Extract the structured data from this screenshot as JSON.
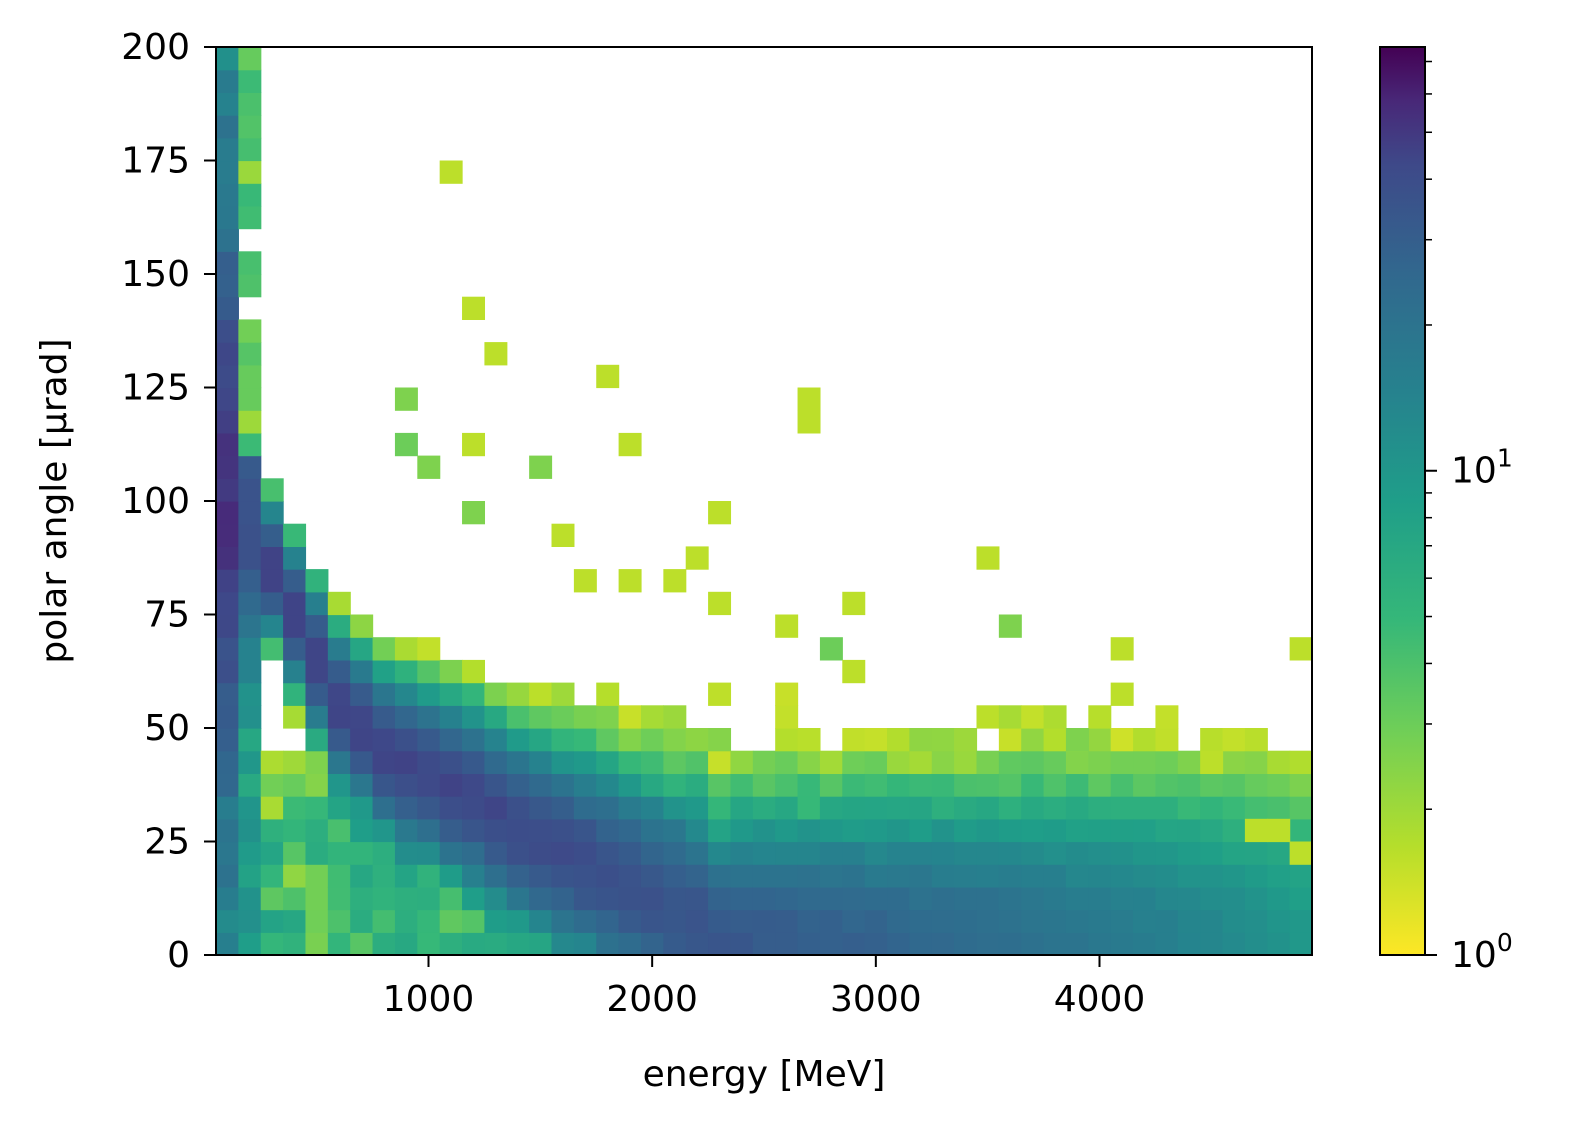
{
  "chart_data": {
    "type": "heatmap",
    "xlabel": "energy [MeV]",
    "ylabel": "polar angle [μrad]",
    "xlim": [
      50,
      4950
    ],
    "ylim": [
      0,
      200
    ],
    "x_bin_width": 100,
    "y_bin_width": 5,
    "x_ticks": [
      1000,
      2000,
      3000,
      4000
    ],
    "x_tick_labels": [
      "1000",
      "2000",
      "3000",
      "4000"
    ],
    "y_ticks": [
      0,
      25,
      50,
      75,
      100,
      125,
      150,
      175,
      200
    ],
    "y_tick_labels": [
      "0",
      "25",
      "50",
      "75",
      "100",
      "125",
      "150",
      "175",
      "200"
    ],
    "colorscale": "viridis_r",
    "log_color_scale": true,
    "clim": [
      1,
      75
    ],
    "colorbar": {
      "ticks": [
        1,
        10
      ],
      "tick_labels": [
        {
          "base": "10",
          "exp": "0"
        },
        {
          "base": "10",
          "exp": "1"
        }
      ]
    },
    "grid": false,
    "ridge_peaks": [
      {
        "x": 100,
        "y": 22
      },
      {
        "x": 150,
        "y": 105
      },
      {
        "x": 250,
        "y": 90
      },
      {
        "x": 400,
        "y": 75
      },
      {
        "x": 500,
        "y": 65
      },
      {
        "x": 600,
        "y": 55
      },
      {
        "x": 800,
        "y": 45
      },
      {
        "x": 1000,
        "y": 40
      },
      {
        "x": 1200,
        "y": 35
      },
      {
        "x": 1400,
        "y": 28
      },
      {
        "x": 1600,
        "y": 23
      },
      {
        "x": 1800,
        "y": 18
      },
      {
        "x": 2000,
        "y": 13
      },
      {
        "x": 2200,
        "y": 8
      },
      {
        "x": 2300,
        "y": 3
      }
    ],
    "sparse_cells": [
      {
        "x": 1100,
        "y": 172.5,
        "v": 1.6
      },
      {
        "x": 1200,
        "y": 142.5,
        "v": 1.6
      },
      {
        "x": 1300,
        "y": 132.5,
        "v": 1.6
      },
      {
        "x": 1800,
        "y": 127.5,
        "v": 1.6
      },
      {
        "x": 2700,
        "y": 122.5,
        "v": 1.6
      },
      {
        "x": 2700,
        "y": 117.5,
        "v": 1.6
      },
      {
        "x": 900,
        "y": 122.5,
        "v": 2.6
      },
      {
        "x": 900,
        "y": 112.5,
        "v": 3.0
      },
      {
        "x": 1200,
        "y": 112.5,
        "v": 1.6
      },
      {
        "x": 1900,
        "y": 112.5,
        "v": 1.6
      },
      {
        "x": 1000,
        "y": 107.5,
        "v": 2.6
      },
      {
        "x": 1500,
        "y": 107.5,
        "v": 2.6
      },
      {
        "x": 1200,
        "y": 97.5,
        "v": 2.6
      },
      {
        "x": 1600,
        "y": 92.5,
        "v": 1.6
      },
      {
        "x": 2300,
        "y": 97.5,
        "v": 1.6
      },
      {
        "x": 2200,
        "y": 87.5,
        "v": 1.6
      },
      {
        "x": 3500,
        "y": 87.5,
        "v": 1.6
      },
      {
        "x": 1700,
        "y": 82.5,
        "v": 1.6
      },
      {
        "x": 1900,
        "y": 82.5,
        "v": 1.6
      },
      {
        "x": 2100,
        "y": 82.5,
        "v": 1.6
      },
      {
        "x": 2300,
        "y": 77.5,
        "v": 1.6
      },
      {
        "x": 2900,
        "y": 77.5,
        "v": 1.6
      },
      {
        "x": 2600,
        "y": 72.5,
        "v": 1.6
      },
      {
        "x": 3600,
        "y": 72.5,
        "v": 2.6
      },
      {
        "x": 2800,
        "y": 67.5,
        "v": 3.0
      },
      {
        "x": 4100,
        "y": 67.5,
        "v": 1.6
      },
      {
        "x": 4900,
        "y": 67.5,
        "v": 1.6
      },
      {
        "x": 2900,
        "y": 62.5,
        "v": 1.6
      },
      {
        "x": 4100,
        "y": 57.5,
        "v": 1.6
      },
      {
        "x": 3900,
        "y": 47.5,
        "v": 2.6
      },
      {
        "x": 4500,
        "y": 42.5,
        "v": 1.6
      },
      {
        "x": 4800,
        "y": 27.5,
        "v": 1.6
      },
      {
        "x": 4900,
        "y": 22.5,
        "v": 1.6
      },
      {
        "x": 4700,
        "y": 27.5,
        "v": 1.6
      }
    ]
  }
}
